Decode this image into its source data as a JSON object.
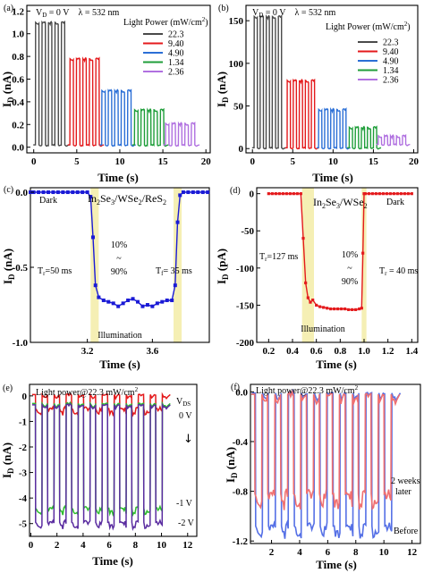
{
  "panels": {
    "a": {
      "label": "(a)",
      "cond_vd": "V",
      "cond_vd_sub": "D",
      "cond_vd_val": " = 0 V",
      "cond_lambda": "λ = 532 nm",
      "legend_title": "Light Power (mW/cm",
      "legend_sup": "2",
      "legend_close": ")",
      "y_axis": "I",
      "y_sub": "D",
      "y_unit": " (nA)",
      "x_axis": "Time (s)"
    },
    "b": {
      "label": "(b)",
      "cond_vd": "V",
      "cond_vd_sub": "D",
      "cond_vd_val": " = 0 V",
      "cond_lambda": "λ = 532 nm",
      "legend_title": "Light Power (mW/cm",
      "legend_sup": "2",
      "legend_close": ")",
      "y_axis": "I",
      "y_sub": "D",
      "y_unit": " (nA)",
      "x_axis": "Time (s)"
    },
    "c": {
      "label": "(c)",
      "title_a": "In",
      "title_1": "2",
      "title_b": "Se",
      "title_2": "3",
      "title_c": "/WSe",
      "title_3": "2",
      "title_d": "/ReS",
      "title_4": "2",
      "dark": "Dark",
      "ratio_top": "10%",
      "ratio_mid": "~",
      "ratio_bot": "90%",
      "tr": "T",
      "tr_sub": "r",
      "tr_val": "=50 ms",
      "tf": "T",
      "tf_sub": "f",
      "tf_val": "= 35 ms",
      "illum": "Illumination",
      "y_axis": "I",
      "y_sub": "D",
      "y_unit": " (nA)",
      "x_axis": "Time (s)"
    },
    "d": {
      "label": "(d)",
      "title_a": "In",
      "title_1": "2",
      "title_b": "Se",
      "title_2": "3",
      "title_c": "/WSe",
      "title_3": "2",
      "dark": "Dark",
      "ratio_top": "10%",
      "ratio_mid": "~",
      "ratio_bot": "90%",
      "tr": "T",
      "tr_sub": "r",
      "tr_val": "=127 ms",
      "tf": "T",
      "tf_sub": "r",
      "tf_val": " = 40 ms",
      "illum": "Illumination",
      "y_axis": "I",
      "y_sub": "D",
      "y_unit": " (pA)",
      "x_axis": "Time (s)"
    },
    "e": {
      "label": "(e)",
      "title": "Light power@22.3 mW/cm",
      "title_sup": "2",
      "vds": "V",
      "vds_sub": "DS",
      "bias_labels": [
        "0 V",
        "-1 V",
        "-2 V"
      ],
      "arrow": "↓",
      "y_axis": "I",
      "y_sub": "D",
      "y_unit": " (nA)",
      "x_axis": "Time (s)"
    },
    "f": {
      "label": "(f)",
      "title": "Light power@22.3 mW/cm",
      "title_sup": "2",
      "later_1": "2 weeks",
      "later_2": "later",
      "before": "Before",
      "y_axis": "I",
      "y_sub": "D",
      "y_unit": " (nA)",
      "x_axis": "Time (s)"
    }
  },
  "chart_data": [
    {
      "panel": "a",
      "type": "line",
      "xlabel": "Time (s)",
      "ylabel": "I_D (nA)",
      "xlim": [
        -0.8,
        20.5
      ],
      "ylim": [
        -0.05,
        1.25
      ],
      "xticks": [
        0,
        5,
        10,
        15,
        20
      ],
      "yticks": [
        0.0,
        0.2,
        0.4,
        0.6,
        0.8,
        1.0,
        1.2
      ],
      "legend_title": "Light Power (mW/cm²)",
      "series": [
        {
          "name": "22.3",
          "color": "#4a4a4a",
          "start": 0.2,
          "period": 0.75,
          "on": 0.4,
          "cycles": 5,
          "on_value": 1.1,
          "dark_value": 0.02
        },
        {
          "name": "9.40",
          "color": "#e41a1c",
          "start": 4.2,
          "period": 0.75,
          "on": 0.4,
          "cycles": 5,
          "on_value": 0.78,
          "dark_value": 0.02
        },
        {
          "name": "4.90",
          "color": "#2b6fd6",
          "start": 7.9,
          "period": 0.75,
          "on": 0.4,
          "cycles": 5,
          "on_value": 0.5,
          "dark_value": 0.02
        },
        {
          "name": "1.34",
          "color": "#1f9e3a",
          "start": 11.7,
          "period": 0.75,
          "on": 0.4,
          "cycles": 5,
          "on_value": 0.33,
          "dark_value": 0.02
        },
        {
          "name": "2.36",
          "color": "#b070e0",
          "start": 15.3,
          "period": 0.75,
          "on": 0.4,
          "cycles": 5,
          "on_value": 0.21,
          "dark_value": 0.02
        }
      ]
    },
    {
      "panel": "b",
      "type": "line",
      "xlabel": "Time (s)",
      "ylabel": "I_D (nA)",
      "xlim": [
        -0.8,
        20.5
      ],
      "ylim": [
        -5,
        168
      ],
      "xticks": [
        0,
        5,
        10,
        15,
        20
      ],
      "yticks": [
        0,
        50,
        100,
        150
      ],
      "legend_title": "Light Power (mW/cm²)",
      "series": [
        {
          "name": "22.3",
          "color": "#4a4a4a",
          "start": 0.2,
          "period": 0.75,
          "on": 0.4,
          "cycles": 5,
          "on_value": 155,
          "dark_value": 1
        },
        {
          "name": "9.40",
          "color": "#e41a1c",
          "start": 4.3,
          "period": 0.75,
          "on": 0.4,
          "cycles": 5,
          "on_value": 80,
          "dark_value": 1
        },
        {
          "name": "4.90",
          "color": "#2b6fd6",
          "start": 8.2,
          "period": 0.75,
          "on": 0.4,
          "cycles": 5,
          "on_value": 46,
          "dark_value": 1
        },
        {
          "name": "1.34",
          "color": "#1f9e3a",
          "start": 12.0,
          "period": 0.75,
          "on": 0.4,
          "cycles": 5,
          "on_value": 25,
          "dark_value": 1
        },
        {
          "name": "2.36",
          "color": "#b070e0",
          "start": 15.6,
          "period": 0.75,
          "on": 0.4,
          "cycles": 5,
          "on_value": 15,
          "dark_value": 5
        }
      ]
    },
    {
      "panel": "c",
      "type": "line",
      "xlabel": "Time (s)",
      "ylabel": "I_D (nA)",
      "xlim": [
        2.85,
        3.95
      ],
      "ylim": [
        -1.0,
        0.03
      ],
      "xticks": [
        3.2,
        3.6
      ],
      "yticks": [
        -1.0,
        -0.5,
        0.0
      ],
      "highlight_bands": [
        [
          3.22,
          3.27
        ],
        [
          3.73,
          3.78
        ]
      ],
      "series": [
        {
          "color": "#1a1ad6",
          "x": [
            2.85,
            2.87,
            2.9,
            2.93,
            2.96,
            2.99,
            3.02,
            3.05,
            3.08,
            3.11,
            3.14,
            3.17,
            3.2,
            3.22,
            3.235,
            3.25,
            3.27,
            3.3,
            3.33,
            3.36,
            3.39,
            3.42,
            3.45,
            3.48,
            3.51,
            3.54,
            3.57,
            3.6,
            3.63,
            3.66,
            3.69,
            3.72,
            3.74,
            3.755,
            3.77,
            3.79,
            3.82,
            3.85,
            3.88,
            3.91,
            3.94
          ],
          "y": [
            0.0,
            0.0,
            0.0,
            0.0,
            0.0,
            0.0,
            0.0,
            0.0,
            0.0,
            0.0,
            0.0,
            0.0,
            0.0,
            -0.03,
            -0.3,
            -0.62,
            -0.7,
            -0.72,
            -0.73,
            -0.74,
            -0.76,
            -0.74,
            -0.72,
            -0.71,
            -0.73,
            -0.76,
            -0.75,
            -0.76,
            -0.74,
            -0.73,
            -0.72,
            -0.72,
            -0.62,
            -0.2,
            -0.02,
            0.0,
            0.0,
            0.0,
            0.0,
            0.0,
            0.0
          ]
        }
      ]
    },
    {
      "panel": "d",
      "type": "line",
      "xlabel": "Time (s)",
      "ylabel": "I_D (pA)",
      "xlim": [
        0.1,
        1.45
      ],
      "ylim": [
        -200,
        8
      ],
      "xticks": [
        0.2,
        0.4,
        0.6,
        0.8,
        1.0,
        1.2,
        1.4
      ],
      "yticks": [
        -200,
        -150,
        -100,
        -50,
        0
      ],
      "highlight_bands": [
        [
          0.48,
          0.58
        ],
        [
          0.98,
          1.02
        ]
      ],
      "series": [
        {
          "color": "#e41a1c",
          "x": [
            0.2,
            0.23,
            0.26,
            0.29,
            0.32,
            0.35,
            0.38,
            0.41,
            0.44,
            0.47,
            0.49,
            0.51,
            0.53,
            0.55,
            0.57,
            0.6,
            0.63,
            0.66,
            0.69,
            0.72,
            0.75,
            0.78,
            0.81,
            0.84,
            0.87,
            0.9,
            0.93,
            0.96,
            0.98,
            0.99,
            1.0,
            1.01,
            1.04,
            1.07,
            1.1,
            1.13,
            1.16,
            1.19,
            1.22,
            1.25,
            1.28,
            1.31,
            1.34,
            1.37,
            1.4
          ],
          "y": [
            0,
            0,
            0,
            0,
            0,
            0,
            0,
            0,
            0,
            0,
            -60,
            -120,
            -140,
            -146,
            -143,
            -150,
            -152,
            -153,
            -154,
            -155,
            -155,
            -155,
            -155,
            -155,
            -156,
            -156,
            -156,
            -155,
            -154,
            -80,
            0,
            0,
            0,
            0,
            0,
            0,
            0,
            0,
            0,
            0,
            0,
            0,
            0,
            0,
            0
          ]
        }
      ]
    },
    {
      "panel": "e",
      "type": "line",
      "xlabel": "Time (s)",
      "ylabel": "I_D (nA)",
      "xlim": [
        -0.1,
        12.7
      ],
      "ylim": [
        -5.5,
        0.45
      ],
      "xticks": [
        0,
        2,
        4,
        6,
        8,
        10,
        12
      ],
      "yticks": [
        -5,
        -4,
        -3,
        -2,
        -1,
        0
      ],
      "series": [
        {
          "name": "0 V",
          "color": "#e41a1c",
          "start": 0.35,
          "period": 0.92,
          "on": 0.5,
          "cycles": 11,
          "high": 0.05,
          "low": -0.5
        },
        {
          "name": "-1 V",
          "color": "#2dbd2d",
          "start": 0.35,
          "period": 0.92,
          "on": 0.5,
          "cycles": 11,
          "high": -0.3,
          "low": -4.4
        },
        {
          "name": "-2 V",
          "color": "#5a2ca0",
          "start": 0.35,
          "period": 0.92,
          "on": 0.5,
          "cycles": 11,
          "high": -0.35,
          "low": -4.95
        }
      ]
    },
    {
      "panel": "f",
      "type": "line",
      "xlabel": "Time (s)",
      "ylabel": "I_D (nA)",
      "xlim": [
        0.5,
        12.6
      ],
      "ylim": [
        -1.22,
        0.06
      ],
      "xticks": [
        2,
        4,
        6,
        8,
        10,
        12
      ],
      "yticks": [
        -1.2,
        -0.8,
        -0.4,
        0.0
      ],
      "series": [
        {
          "name": "2 weeks later",
          "color": "#f07070",
          "start": 0.8,
          "period": 0.92,
          "on": 0.5,
          "cycles": 11,
          "high": -0.02,
          "low": -0.82
        },
        {
          "name": "Before",
          "color": "#5570e6",
          "start": 0.85,
          "period": 0.92,
          "on": 0.5,
          "cycles": 11,
          "high": -0.01,
          "low": -1.08
        }
      ]
    }
  ]
}
